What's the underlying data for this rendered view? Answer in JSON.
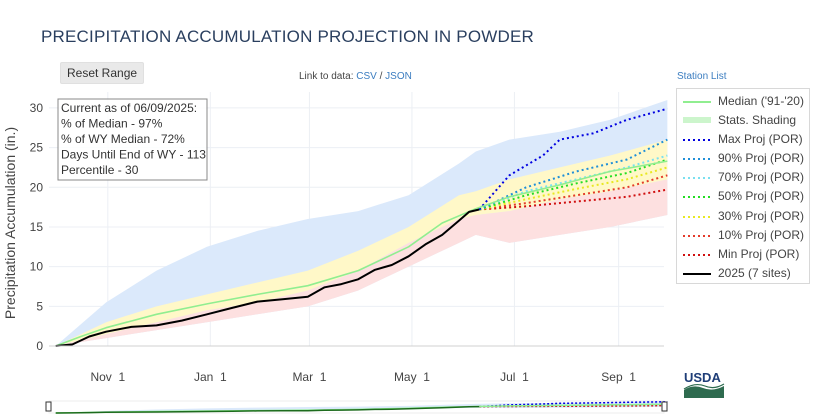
{
  "title": "PRECIPITATION ACCUMULATION PROJECTION IN POWDER",
  "reset_label": "Reset Range",
  "links": {
    "prefix": "Link to data:",
    "csv": "CSV",
    "sep": "/",
    "json": "JSON"
  },
  "station_list_label": "Station List",
  "info_box": {
    "lines": [
      "Current as of 06/09/2025:",
      "% of Median - 97%",
      "% of WY Median - 72%",
      "Days Until End of WY - 113",
      "Percentile - 30"
    ]
  },
  "logo_text": "USDA",
  "legend": [
    {
      "label": "Median ('91-'20)",
      "color": "#90ee90",
      "style": "solid"
    },
    {
      "label": "Stats. Shading",
      "color": "#ccf5cc",
      "style": "band"
    },
    {
      "label": "Max Proj (POR)",
      "color": "#0000e0",
      "style": "dotted"
    },
    {
      "label": "90% Proj (POR)",
      "color": "#1f8fd8",
      "style": "dotted"
    },
    {
      "label": "70% Proj (POR)",
      "color": "#7ae0f0",
      "style": "dotted"
    },
    {
      "label": "50% Proj (POR)",
      "color": "#22dd22",
      "style": "dotted"
    },
    {
      "label": "30% Proj (POR)",
      "color": "#e8e822",
      "style": "dotted"
    },
    {
      "label": "10% Proj (POR)",
      "color": "#e43a2a",
      "style": "dotted"
    },
    {
      "label": "Min Proj (POR)",
      "color": "#d01010",
      "style": "dotted"
    },
    {
      "label": "2025 (7 sites)",
      "color": "#000000",
      "style": "solid"
    }
  ],
  "chart_data": {
    "type": "line",
    "ylabel": "Precipitation Accumulation (in.)",
    "xlabel": "",
    "ylim": [
      0,
      32
    ],
    "yticks": [
      0,
      5,
      10,
      15,
      20,
      25,
      30
    ],
    "xlim_days": [
      -4,
      362
    ],
    "x_axis_note": "x values are days since Oct 1 of the water year",
    "xticks": [
      {
        "day": 31,
        "label": "Nov 1"
      },
      {
        "day": 92,
        "label": "Jan 1"
      },
      {
        "day": 151,
        "label": "Mar 1"
      },
      {
        "day": 212,
        "label": "May 1"
      },
      {
        "day": 273,
        "label": "Jul 1"
      },
      {
        "day": 335,
        "label": "Sep 1"
      }
    ],
    "grid": true,
    "legend_position": "right",
    "bands": {
      "x": [
        0,
        30,
        60,
        90,
        120,
        150,
        180,
        210,
        240,
        250,
        270,
        300,
        330,
        364
      ],
      "p90": [
        0,
        5.5,
        9.5,
        12.5,
        14.5,
        16,
        17,
        19,
        23,
        24.5,
        26,
        27,
        28.5,
        31
      ],
      "p70": [
        0,
        3,
        5,
        6.5,
        8,
        9.5,
        12,
        15,
        19,
        19.5,
        21,
        22.5,
        24,
        26
      ],
      "p30": [
        0,
        1.5,
        3,
        4.5,
        5.5,
        7,
        9.5,
        13,
        16,
        16.5,
        17,
        18.5,
        19.5,
        21
      ],
      "p10": [
        0,
        1,
        2,
        3,
        4,
        5,
        7,
        10,
        13,
        14,
        13,
        14,
        15,
        16.5
      ]
    },
    "series": [
      {
        "name": "Median ('91-'20)",
        "x": [
          0,
          15,
          30,
          60,
          90,
          120,
          150,
          180,
          210,
          230,
          250,
          270,
          300,
          330,
          364
        ],
        "values": [
          0,
          1.2,
          2.3,
          4,
          5.3,
          6.5,
          7.6,
          9.5,
          12.5,
          15.5,
          17.3,
          18.8,
          20.3,
          22,
          23.3
        ]
      },
      {
        "name": "2025 (7 sites)",
        "x": [
          0,
          10,
          20,
          30,
          45,
          60,
          75,
          90,
          105,
          120,
          135,
          150,
          160,
          170,
          180,
          190,
          200,
          210,
          220,
          230,
          240,
          246,
          252
        ],
        "values": [
          0,
          0.2,
          1.2,
          1.8,
          2.4,
          2.6,
          3.2,
          4.0,
          4.8,
          5.6,
          5.9,
          6.2,
          7.4,
          7.8,
          8.4,
          9.6,
          10.2,
          11.3,
          12.8,
          14.0,
          15.8,
          16.9,
          17.2
        ]
      },
      {
        "name": "Max Proj (POR)",
        "x": [
          252,
          270,
          290,
          300,
          320,
          340,
          364
        ],
        "values": [
          17.2,
          21.5,
          24,
          26,
          26.8,
          28.5,
          29.9
        ]
      },
      {
        "name": "90% Proj (POR)",
        "x": [
          252,
          280,
          310,
          340,
          364
        ],
        "values": [
          17.2,
          20,
          22,
          23.5,
          26
        ]
      },
      {
        "name": "70% Proj (POR)",
        "x": [
          252,
          280,
          310,
          340,
          364
        ],
        "values": [
          17.2,
          19.5,
          21,
          22.5,
          24
        ]
      },
      {
        "name": "50% Proj (POR)",
        "x": [
          252,
          280,
          310,
          340,
          364
        ],
        "values": [
          17.2,
          19,
          20.5,
          21.8,
          23.5
        ]
      },
      {
        "name": "30% Proj (POR)",
        "x": [
          252,
          280,
          310,
          340,
          364
        ],
        "values": [
          17.2,
          18.5,
          19.8,
          21,
          22.5
        ]
      },
      {
        "name": "10% Proj (POR)",
        "x": [
          252,
          280,
          310,
          340,
          364
        ],
        "values": [
          17.2,
          18,
          19,
          20,
          21.5
        ]
      },
      {
        "name": "Min Proj (POR)",
        "x": [
          252,
          280,
          310,
          340,
          364
        ],
        "values": [
          17.2,
          17.6,
          18.2,
          18.8,
          19.7
        ]
      }
    ]
  }
}
